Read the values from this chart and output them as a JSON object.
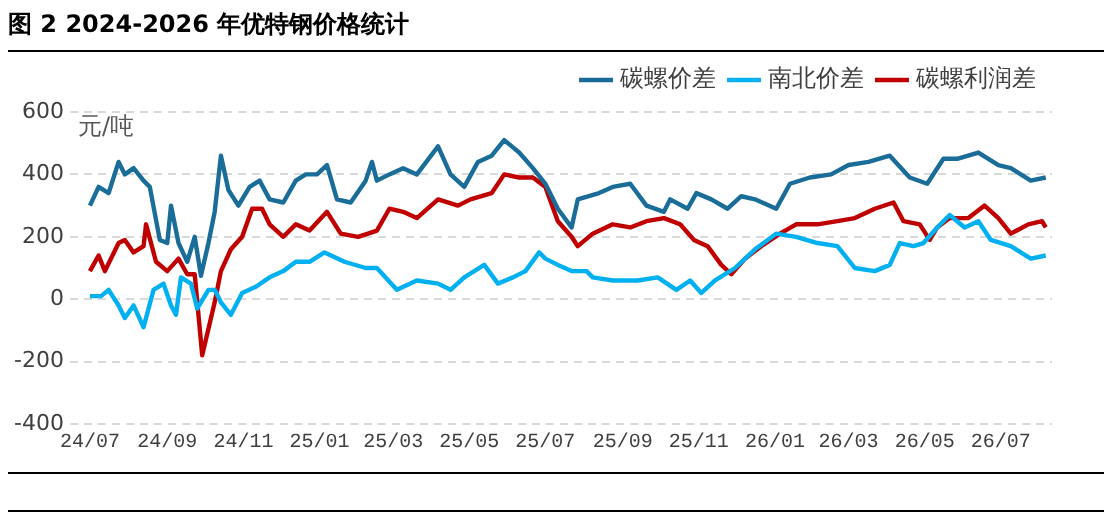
{
  "chart_data": {
    "type": "line",
    "title": "图 2 2024-2026 年优特钢价格统计",
    "ylabel": "元/吨",
    "xlim": [
      "2024-06-15",
      "2026-08-11"
    ],
    "xticks": [
      {
        "value": "2024-07-01",
        "label": "24/07"
      },
      {
        "value": "2024-09-01",
        "label": "24/09"
      },
      {
        "value": "2024-11-01",
        "label": "24/11"
      },
      {
        "value": "2025-01-01",
        "label": "25/01"
      },
      {
        "value": "2025-03-01",
        "label": "25/03"
      },
      {
        "value": "2025-05-01",
        "label": "25/05"
      },
      {
        "value": "2025-07-01",
        "label": "25/07"
      },
      {
        "value": "2025-09-01",
        "label": "25/09"
      },
      {
        "value": "2025-11-01",
        "label": "25/11"
      },
      {
        "value": "2026-01-01",
        "label": "26/01"
      },
      {
        "value": "2026-03-01",
        "label": "26/03"
      },
      {
        "value": "2026-05-01",
        "label": "26/05"
      },
      {
        "value": "2026-07-01",
        "label": "26/07"
      }
    ],
    "ylim": [
      -400,
      600
    ],
    "yticks": [
      -400,
      -200,
      0,
      200,
      400,
      600
    ],
    "grid": "y",
    "legend": "top right",
    "marker": "none",
    "line_style": "solid",
    "series": [
      {
        "name": "碳螺价差",
        "color": "#1b6d99",
        "x": [
          "2024-07-01",
          "2024-07-08",
          "2024-07-16",
          "2024-07-24",
          "2024-07-29",
          "2024-08-05",
          "2024-08-13",
          "2024-08-18",
          "2024-08-26",
          "2024-09-01",
          "2024-09-04",
          "2024-09-10",
          "2024-09-17",
          "2024-09-23",
          "2024-09-28",
          "2024-10-04",
          "2024-10-09",
          "2024-10-14",
          "2024-10-20",
          "2024-10-28",
          "2024-11-06",
          "2024-11-14",
          "2024-11-22",
          "2024-12-03",
          "2024-12-13",
          "2024-12-21",
          "2024-12-30",
          "2025-01-07",
          "2025-01-15",
          "2025-01-26",
          "2025-02-07",
          "2025-02-12",
          "2025-02-16",
          "2025-02-26",
          "2025-03-09",
          "2025-03-20",
          "2025-04-06",
          "2025-04-16",
          "2025-04-27",
          "2025-05-08",
          "2025-05-19",
          "2025-05-29",
          "2025-06-10",
          "2025-06-21",
          "2025-07-01",
          "2025-07-11",
          "2025-07-22",
          "2025-07-27",
          "2025-08-13",
          "2025-08-24",
          "2025-09-07",
          "2025-09-20",
          "2025-10-04",
          "2025-10-09",
          "2025-10-23",
          "2025-10-30",
          "2025-11-11",
          "2025-11-24",
          "2025-12-05",
          "2025-12-16",
          "2026-01-02",
          "2026-01-13",
          "2026-01-29",
          "2026-02-15",
          "2026-03-01",
          "2026-03-17",
          "2026-04-03",
          "2026-04-19",
          "2026-05-03",
          "2026-05-16",
          "2026-05-27",
          "2026-06-13",
          "2026-06-29",
          "2026-07-09",
          "2026-07-25",
          "2026-08-06"
        ],
        "values": [
          300,
          360,
          340,
          440,
          400,
          420,
          380,
          360,
          190,
          180,
          300,
          180,
          120,
          200,
          75,
          180,
          280,
          460,
          350,
          300,
          360,
          380,
          320,
          310,
          380,
          400,
          400,
          430,
          320,
          310,
          380,
          440,
          380,
          400,
          420,
          400,
          490,
          400,
          360,
          440,
          460,
          510,
          470,
          420,
          370,
          290,
          230,
          320,
          340,
          360,
          370,
          300,
          280,
          320,
          290,
          340,
          320,
          290,
          330,
          320,
          290,
          370,
          390,
          400,
          430,
          440,
          460,
          390,
          370,
          450,
          450,
          470,
          430,
          420,
          380,
          390
        ]
      },
      {
        "name": "南北价差",
        "color": "#00b0f0",
        "x": [
          "2024-07-01",
          "2024-07-10",
          "2024-07-16",
          "2024-07-24",
          "2024-07-29",
          "2024-08-05",
          "2024-08-13",
          "2024-08-21",
          "2024-08-29",
          "2024-09-04",
          "2024-09-08",
          "2024-09-12",
          "2024-09-20",
          "2024-09-25",
          "2024-10-04",
          "2024-10-09",
          "2024-10-14",
          "2024-10-22",
          "2024-10-31",
          "2024-11-11",
          "2024-11-22",
          "2024-12-03",
          "2024-12-13",
          "2024-12-24",
          "2025-01-05",
          "2025-01-21",
          "2025-02-07",
          "2025-02-16",
          "2025-03-04",
          "2025-03-20",
          "2025-04-06",
          "2025-04-16",
          "2025-04-27",
          "2025-05-13",
          "2025-05-24",
          "2025-06-05",
          "2025-06-15",
          "2025-06-26",
          "2025-07-01",
          "2025-07-11",
          "2025-07-22",
          "2025-08-03",
          "2025-08-08",
          "2025-08-24",
          "2025-09-13",
          "2025-09-29",
          "2025-10-14",
          "2025-10-25",
          "2025-11-03",
          "2025-11-14",
          "2025-11-30",
          "2025-12-16",
          "2026-01-02",
          "2026-01-18",
          "2026-02-04",
          "2026-02-20",
          "2026-03-06",
          "2026-03-22",
          "2026-04-03",
          "2026-04-11",
          "2026-04-22",
          "2026-04-30",
          "2026-05-11",
          "2026-05-21",
          "2026-06-02",
          "2026-06-13",
          "2026-06-23",
          "2026-07-09",
          "2026-07-25",
          "2026-08-06"
        ],
        "values": [
          10,
          10,
          30,
          -20,
          -60,
          -20,
          -90,
          30,
          50,
          -20,
          -50,
          70,
          50,
          -30,
          30,
          30,
          -10,
          -50,
          20,
          40,
          70,
          90,
          120,
          120,
          150,
          120,
          100,
          100,
          30,
          60,
          50,
          30,
          70,
          110,
          50,
          70,
          90,
          150,
          130,
          110,
          90,
          90,
          70,
          60,
          60,
          70,
          30,
          60,
          20,
          60,
          100,
          160,
          210,
          200,
          180,
          170,
          100,
          90,
          110,
          180,
          170,
          180,
          230,
          270,
          230,
          250,
          190,
          170,
          130,
          140
        ]
      },
      {
        "name": "碳螺利润差",
        "color": "#c00000",
        "x": [
          "2024-07-01",
          "2024-07-08",
          "2024-07-13",
          "2024-07-24",
          "2024-07-29",
          "2024-08-05",
          "2024-08-13",
          "2024-08-15",
          "2024-08-23",
          "2024-09-01",
          "2024-09-10",
          "2024-09-17",
          "2024-09-23",
          "2024-09-29",
          "2024-10-09",
          "2024-10-14",
          "2024-10-22",
          "2024-10-31",
          "2024-11-08",
          "2024-11-16",
          "2024-11-22",
          "2024-12-03",
          "2024-12-13",
          "2024-12-24",
          "2025-01-07",
          "2025-01-18",
          "2025-02-01",
          "2025-02-16",
          "2025-02-26",
          "2025-03-09",
          "2025-03-20",
          "2025-04-06",
          "2025-04-22",
          "2025-05-02",
          "2025-05-19",
          "2025-05-29",
          "2025-06-10",
          "2025-06-21",
          "2025-07-01",
          "2025-07-11",
          "2025-07-22",
          "2025-07-27",
          "2025-08-08",
          "2025-08-24",
          "2025-09-07",
          "2025-09-20",
          "2025-10-04",
          "2025-10-17",
          "2025-10-28",
          "2025-11-08",
          "2025-11-19",
          "2025-11-27",
          "2025-12-08",
          "2025-12-21",
          "2026-01-05",
          "2026-01-18",
          "2026-02-04",
          "2026-02-20",
          "2026-03-06",
          "2026-03-22",
          "2026-04-06",
          "2026-04-14",
          "2026-04-27",
          "2026-05-05",
          "2026-05-11",
          "2026-05-21",
          "2026-06-05",
          "2026-06-18",
          "2026-06-29",
          "2026-07-09",
          "2026-07-23",
          "2026-08-03",
          "2026-08-06"
        ],
        "values": [
          90,
          140,
          90,
          180,
          190,
          150,
          170,
          240,
          120,
          90,
          130,
          80,
          80,
          -180,
          -10,
          90,
          160,
          200,
          290,
          290,
          240,
          200,
          240,
          220,
          280,
          210,
          200,
          220,
          290,
          280,
          260,
          320,
          300,
          320,
          340,
          400,
          390,
          390,
          360,
          250,
          200,
          170,
          210,
          240,
          230,
          250,
          260,
          240,
          190,
          170,
          110,
          80,
          130,
          170,
          210,
          240,
          240,
          250,
          260,
          290,
          310,
          250,
          240,
          190,
          230,
          260,
          260,
          300,
          260,
          210,
          240,
          250,
          230
        ]
      }
    ]
  }
}
